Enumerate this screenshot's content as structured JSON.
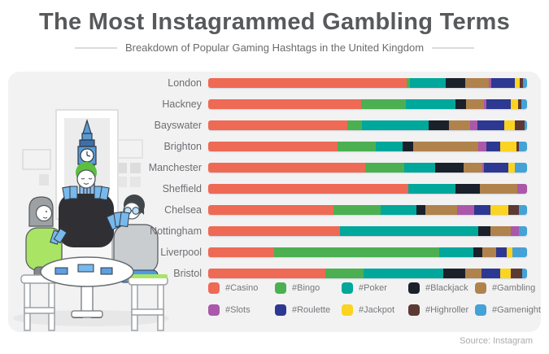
{
  "header": {
    "title": "The Most Instagrammed Gambling Terms",
    "subtitle": "Breakdown of Popular Gaming Hashtags in the United Kingdom"
  },
  "footer": {
    "source": "Source: Instagram"
  },
  "colors": {
    "page_bg": "#FFFFFF",
    "panel_bg": "#F2F2F3",
    "title_text": "#58595B",
    "subtitle_text": "#696B6D",
    "category_label_text": "#6D6E71",
    "legend_text": "#77787B",
    "source_text": "#A9ABAE"
  },
  "chart_data": {
    "type": "bar",
    "variant": "horizontal-stacked",
    "title": "The Most Instagrammed Gambling Terms",
    "subtitle": "Breakdown of Popular Gaming Hashtags in the United Kingdom",
    "unit": "percent share of bar length (estimated from segment widths)",
    "xlim": [
      0,
      100
    ],
    "grid": false,
    "legend_position": "bottom",
    "categories": [
      "London",
      "Hackney",
      "Bayswater",
      "Brighton",
      "Manchester",
      "Sheffield",
      "Chelsea",
      "Nottingham",
      "Liverpool",
      "Bristol"
    ],
    "series": [
      {
        "name": "#Casino",
        "color": "#EE6A55",
        "values": [
          62.2,
          48.0,
          43.6,
          40.6,
          49.2,
          62.8,
          39.3,
          42.3,
          20.7,
          36.7
        ]
      },
      {
        "name": "#Bingo",
        "color": "#4CB052",
        "values": [
          1.0,
          14.0,
          4.6,
          12.0,
          12.2,
          0,
          14.8,
          0,
          51.8,
          12.0
        ]
      },
      {
        "name": "#Poker",
        "color": "#00A79B",
        "values": [
          11.2,
          15.6,
          20.9,
          8.4,
          9.7,
          14.8,
          11.2,
          44.6,
          10.7,
          25.0
        ]
      },
      {
        "name": "#Blackjack",
        "color": "#1B212A",
        "values": [
          6.1,
          3.3,
          6.4,
          3.3,
          8.9,
          7.7,
          2.8,
          3.8,
          2.8,
          6.9
        ]
      },
      {
        "name": "#Gambling",
        "color": "#B0834D",
        "values": [
          7.4,
          5.6,
          6.6,
          20.4,
          5.9,
          11.7,
          9.9,
          6.6,
          4.3,
          5.1
        ]
      },
      {
        "name": "#Slots",
        "color": "#AB58AA",
        "values": [
          0.8,
          0.8,
          2.3,
          2.6,
          0.5,
          3.1,
          5.4,
          2.6,
          0,
          0
        ]
      },
      {
        "name": "#Roulette",
        "color": "#2D3892",
        "values": [
          7.4,
          7.7,
          8.4,
          4.3,
          7.7,
          0,
          5.1,
          0,
          3.3,
          5.9
        ]
      },
      {
        "name": "#Jackpot",
        "color": "#FBD422",
        "values": [
          1.5,
          2.3,
          3.3,
          5.1,
          2.0,
          0,
          5.6,
          0,
          1.8,
          3.3
        ]
      },
      {
        "name": "#Highroller",
        "color": "#5C3A33",
        "values": [
          1.0,
          1.0,
          3.1,
          0.8,
          0,
          0,
          3.3,
          0,
          0,
          3.6
        ]
      },
      {
        "name": "#Gamenight",
        "color": "#45A2D6",
        "values": [
          1.3,
          1.8,
          0.8,
          2.6,
          3.8,
          0,
          2.6,
          2.6,
          4.6,
          1.5
        ]
      }
    ]
  }
}
